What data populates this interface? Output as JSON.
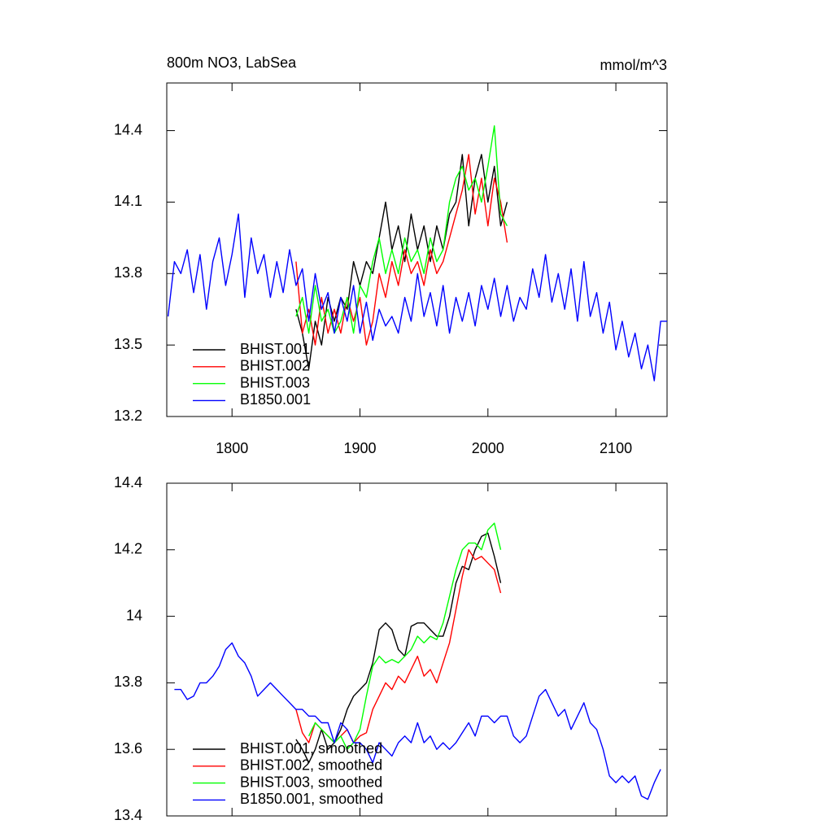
{
  "chart_data": [
    {
      "type": "line",
      "title": "800m NO3, LabSea",
      "units_label": "mmol/m^3",
      "xlim": [
        1749,
        2140
      ],
      "xticks": [
        1800,
        1900,
        2000,
        2100
      ],
      "show_xtick_labels": true,
      "ylim": [
        13.2,
        14.6
      ],
      "yticks": [
        13.2,
        13.5,
        13.8,
        14.1,
        14.4
      ],
      "legend": "lower left",
      "x": [
        1750,
        1755,
        1760,
        1765,
        1770,
        1775,
        1780,
        1785,
        1790,
        1795,
        1800,
        1805,
        1810,
        1815,
        1820,
        1825,
        1830,
        1835,
        1840,
        1845,
        1850,
        1855,
        1860,
        1865,
        1870,
        1875,
        1880,
        1885,
        1890,
        1895,
        1900,
        1905,
        1910,
        1915,
        1920,
        1925,
        1930,
        1935,
        1940,
        1945,
        1950,
        1955,
        1960,
        1965,
        1970,
        1975,
        1980,
        1985,
        1990,
        1995,
        2000,
        2005,
        2010,
        2015,
        2020,
        2025,
        2030,
        2035,
        2040,
        2045,
        2050,
        2055,
        2060,
        2065,
        2070,
        2075,
        2080,
        2085,
        2090,
        2095,
        2100,
        2105,
        2110,
        2115,
        2120,
        2125,
        2130,
        2135,
        2140
      ],
      "series": [
        {
          "name": "BHIST.001",
          "color": "#000000",
          "values": [
            null,
            null,
            null,
            null,
            null,
            null,
            null,
            null,
            null,
            null,
            null,
            null,
            null,
            null,
            null,
            null,
            null,
            null,
            null,
            null,
            13.65,
            13.55,
            13.4,
            13.6,
            13.5,
            13.7,
            13.6,
            13.7,
            13.65,
            13.85,
            13.75,
            13.85,
            13.8,
            13.95,
            14.1,
            13.9,
            14.0,
            13.85,
            14.05,
            13.9,
            14.0,
            13.85,
            14.0,
            13.9,
            14.05,
            14.1,
            14.3,
            14.0,
            14.2,
            14.3,
            14.1,
            14.25,
            14.0,
            14.1,
            null,
            null,
            null,
            null,
            null,
            null,
            null,
            null,
            null,
            null,
            null,
            null,
            null,
            null,
            null,
            null,
            null,
            null,
            null,
            null,
            null,
            null,
            null,
            null,
            null
          ]
        },
        {
          "name": "BHIST.002",
          "color": "#ff0000",
          "values": [
            null,
            null,
            null,
            null,
            null,
            null,
            null,
            null,
            null,
            null,
            null,
            null,
            null,
            null,
            null,
            null,
            null,
            null,
            null,
            null,
            13.85,
            13.55,
            13.65,
            13.5,
            13.7,
            13.55,
            13.65,
            13.55,
            13.7,
            13.6,
            13.7,
            13.5,
            13.6,
            13.8,
            13.7,
            13.85,
            13.75,
            13.9,
            13.8,
            13.85,
            13.75,
            13.9,
            13.8,
            13.85,
            13.95,
            14.05,
            14.15,
            14.3,
            14.05,
            14.2,
            14.0,
            14.2,
            14.1,
            13.93,
            null,
            null,
            null,
            null,
            null,
            null,
            null,
            null,
            null,
            null,
            null,
            null,
            null,
            null,
            null,
            null,
            null,
            null,
            null,
            null,
            null,
            null,
            null,
            null,
            null
          ]
        },
        {
          "name": "BHIST.003",
          "color": "#00ff00",
          "values": [
            null,
            null,
            null,
            null,
            null,
            null,
            null,
            null,
            null,
            null,
            null,
            null,
            null,
            null,
            null,
            null,
            null,
            null,
            null,
            null,
            13.62,
            13.7,
            13.55,
            13.75,
            13.6,
            13.65,
            13.55,
            13.6,
            13.7,
            13.55,
            13.75,
            13.7,
            13.85,
            13.95,
            13.8,
            13.9,
            13.8,
            13.95,
            13.85,
            13.9,
            13.8,
            13.95,
            13.85,
            13.9,
            14.1,
            14.2,
            14.25,
            14.15,
            14.2,
            14.1,
            14.25,
            14.42,
            14.05,
            14.0,
            null,
            null,
            null,
            null,
            null,
            null,
            null,
            null,
            null,
            null,
            null,
            null,
            null,
            null,
            null,
            null,
            null,
            null,
            null,
            null,
            null,
            null,
            null,
            null,
            null
          ]
        },
        {
          "name": "B1850.001",
          "color": "#0000ff",
          "values": [
            13.62,
            13.85,
            13.8,
            13.9,
            13.72,
            13.88,
            13.65,
            13.85,
            13.95,
            13.75,
            13.88,
            14.05,
            13.7,
            13.95,
            13.8,
            13.88,
            13.7,
            13.85,
            13.72,
            13.9,
            13.75,
            13.82,
            13.6,
            13.8,
            13.65,
            13.72,
            13.55,
            13.7,
            13.6,
            13.75,
            13.55,
            13.68,
            13.52,
            13.65,
            13.58,
            13.62,
            13.55,
            13.7,
            13.6,
            13.8,
            13.62,
            13.72,
            13.58,
            13.75,
            13.55,
            13.7,
            13.6,
            13.72,
            13.58,
            13.75,
            13.65,
            13.78,
            13.62,
            13.75,
            13.6,
            13.7,
            13.65,
            13.82,
            13.7,
            13.88,
            13.68,
            13.8,
            13.65,
            13.82,
            13.6,
            13.85,
            13.62,
            13.72,
            13.55,
            13.68,
            13.48,
            13.6,
            13.45,
            13.55,
            13.4,
            13.5,
            13.35,
            13.6,
            13.6
          ]
        }
      ]
    },
    {
      "type": "line",
      "xlim": [
        1749,
        2140
      ],
      "xticks": [
        1800,
        1900,
        2000,
        2100
      ],
      "show_xtick_labels": false,
      "ylim": [
        13.4,
        14.4
      ],
      "yticks": [
        13.4,
        13.6,
        13.8,
        14.0,
        14.2,
        14.4
      ],
      "legend": "lower left",
      "x": [
        1750,
        1755,
        1760,
        1765,
        1770,
        1775,
        1780,
        1785,
        1790,
        1795,
        1800,
        1805,
        1810,
        1815,
        1820,
        1825,
        1830,
        1835,
        1840,
        1845,
        1850,
        1855,
        1860,
        1865,
        1870,
        1875,
        1880,
        1885,
        1890,
        1895,
        1900,
        1905,
        1910,
        1915,
        1920,
        1925,
        1930,
        1935,
        1940,
        1945,
        1950,
        1955,
        1960,
        1965,
        1970,
        1975,
        1980,
        1985,
        1990,
        1995,
        2000,
        2005,
        2010,
        2015,
        2020,
        2025,
        2030,
        2035,
        2040,
        2045,
        2050,
        2055,
        2060,
        2065,
        2070,
        2075,
        2080,
        2085,
        2090,
        2095,
        2100,
        2105,
        2110,
        2115,
        2120,
        2125,
        2130,
        2135,
        2140
      ],
      "series": [
        {
          "name": "BHIST.001, smoothed",
          "color": "#000000",
          "values": [
            null,
            null,
            null,
            null,
            null,
            null,
            null,
            null,
            null,
            null,
            null,
            null,
            null,
            null,
            null,
            null,
            null,
            null,
            null,
            null,
            13.63,
            13.6,
            13.56,
            13.6,
            13.66,
            13.6,
            13.62,
            13.66,
            13.72,
            13.76,
            13.78,
            13.8,
            13.86,
            13.96,
            13.98,
            13.96,
            13.9,
            13.88,
            13.97,
            13.98,
            13.98,
            13.96,
            13.94,
            13.94,
            14.0,
            14.1,
            14.15,
            14.14,
            14.2,
            14.24,
            14.25,
            14.18,
            14.1,
            null,
            null,
            null,
            null,
            null,
            null,
            null,
            null,
            null,
            null,
            null,
            null,
            null,
            null,
            null,
            null,
            null,
            null,
            null,
            null,
            null,
            null,
            null,
            null,
            null,
            null
          ]
        },
        {
          "name": "BHIST.002, smoothed",
          "color": "#ff0000",
          "values": [
            null,
            null,
            null,
            null,
            null,
            null,
            null,
            null,
            null,
            null,
            null,
            null,
            null,
            null,
            null,
            null,
            null,
            null,
            null,
            null,
            13.72,
            13.65,
            13.62,
            13.68,
            13.66,
            13.64,
            13.62,
            13.64,
            13.66,
            13.62,
            13.64,
            13.65,
            13.72,
            13.76,
            13.8,
            13.78,
            13.82,
            13.8,
            13.84,
            13.88,
            13.82,
            13.84,
            13.8,
            13.86,
            13.92,
            14.02,
            14.12,
            14.2,
            14.17,
            14.18,
            14.16,
            14.14,
            14.07,
            null,
            null,
            null,
            null,
            null,
            null,
            null,
            null,
            null,
            null,
            null,
            null,
            null,
            null,
            null,
            null,
            null,
            null,
            null,
            null,
            null,
            null,
            null,
            null,
            null,
            null
          ]
        },
        {
          "name": "BHIST.003, smoothed",
          "color": "#00ff00",
          "values": [
            null,
            null,
            null,
            null,
            null,
            null,
            null,
            null,
            null,
            null,
            null,
            null,
            null,
            null,
            null,
            null,
            null,
            null,
            null,
            null,
            null,
            null,
            13.64,
            13.68,
            13.66,
            13.64,
            13.62,
            13.64,
            13.6,
            13.62,
            13.66,
            13.76,
            13.85,
            13.88,
            13.86,
            13.87,
            13.86,
            13.88,
            13.9,
            13.94,
            13.92,
            13.94,
            13.93,
            13.98,
            14.06,
            14.14,
            14.2,
            14.22,
            14.22,
            14.2,
            14.26,
            14.28,
            14.2,
            null,
            null,
            null,
            null,
            null,
            null,
            null,
            null,
            null,
            null,
            null,
            null,
            null,
            null,
            null,
            null,
            null,
            null,
            null,
            null,
            null,
            null,
            null,
            null,
            null,
            null
          ]
        },
        {
          "name": "B1850.001, smoothed",
          "color": "#0000ff",
          "values": [
            null,
            13.78,
            13.78,
            13.75,
            13.76,
            13.8,
            13.8,
            13.82,
            13.85,
            13.9,
            13.92,
            13.88,
            13.86,
            13.82,
            13.76,
            13.78,
            13.8,
            13.78,
            13.76,
            13.74,
            13.72,
            13.72,
            13.7,
            13.7,
            13.68,
            13.68,
            13.62,
            13.68,
            13.66,
            13.62,
            13.62,
            13.6,
            13.56,
            13.62,
            13.6,
            13.58,
            13.62,
            13.64,
            13.62,
            13.68,
            13.62,
            13.64,
            13.6,
            13.62,
            13.6,
            13.62,
            13.65,
            13.68,
            13.64,
            13.7,
            13.7,
            13.68,
            13.7,
            13.7,
            13.64,
            13.62,
            13.64,
            13.7,
            13.76,
            13.78,
            13.74,
            13.7,
            13.72,
            13.66,
            13.7,
            13.74,
            13.68,
            13.66,
            13.6,
            13.52,
            13.5,
            13.52,
            13.5,
            13.52,
            13.46,
            13.45,
            13.5,
            13.54,
            null
          ]
        }
      ]
    }
  ]
}
